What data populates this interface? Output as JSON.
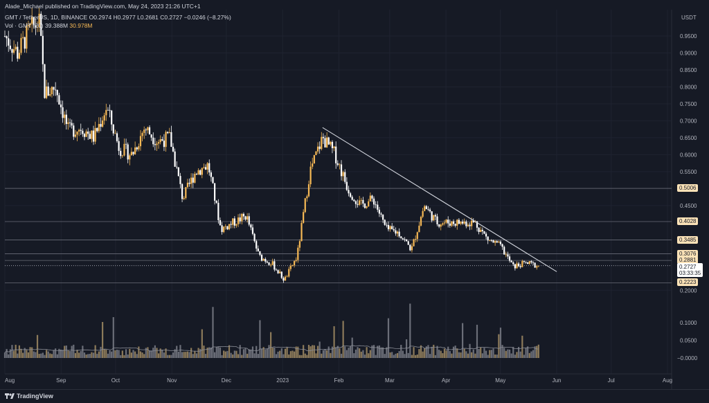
{
  "header": {
    "publisher": "Alade_Michael published on TradingView.com, May 24, 2023 21:26 UTC+1",
    "symbol": "GMT / TetherUS, 1D, BINANCE",
    "o_label": "O",
    "o_value": "0.2974",
    "h_label": "H",
    "h_value": "0.2977",
    "l_label": "L",
    "l_value": "0.2681",
    "c_label": "C",
    "c_value": "0.2727",
    "change": "−0.0246 (−8.27%)",
    "vol_label": "Vol · GMT (20)",
    "vol_value1": "39.388M",
    "vol_value2": "30.978M"
  },
  "axis": {
    "currency": "USDT",
    "price_ticks": [
      "0.9500",
      "0.9000",
      "0.8500",
      "0.8000",
      "0.7500",
      "0.7000",
      "0.6500",
      "0.6000",
      "0.5500",
      "0.4500",
      "0.2000"
    ],
    "volume_ticks": [
      "0.1000",
      "0.0500",
      "−0.0000"
    ],
    "months": [
      "Aug",
      "Sep",
      "Oct",
      "Nov",
      "Dec",
      "2023",
      "Feb",
      "Mar",
      "Apr",
      "May",
      "Jun",
      "Jul",
      "Aug"
    ]
  },
  "levels": [
    "0.5006",
    "0.4028",
    "0.3485",
    "0.3076",
    "0.2881",
    "0.2223"
  ],
  "current": {
    "price": "0.2727",
    "countdown": "03:33:35"
  },
  "footer": {
    "brand": "TradingView"
  },
  "chart_data": {
    "type": "candlestick",
    "price_axis_range": [
      0.16,
      1.0
    ],
    "horizontal_levels": [
      0.5006,
      0.4028,
      0.3485,
      0.3076,
      0.2881,
      0.2223
    ],
    "trendline": {
      "from": [
        "2023-01-23",
        0.68
      ],
      "to": [
        "2023-06-01",
        0.255
      ]
    },
    "close_series": [
      {
        "date": "2022-08-01",
        "close": 0.95
      },
      {
        "date": "2022-08-08",
        "close": 0.9
      },
      {
        "date": "2022-08-15",
        "close": 0.97
      },
      {
        "date": "2022-08-20",
        "close": 0.99
      },
      {
        "date": "2022-08-23",
        "close": 0.78
      },
      {
        "date": "2022-08-29",
        "close": 0.8
      },
      {
        "date": "2022-09-05",
        "close": 0.67
      },
      {
        "date": "2022-09-12",
        "close": 0.68
      },
      {
        "date": "2022-09-19",
        "close": 0.65
      },
      {
        "date": "2022-09-26",
        "close": 0.74
      },
      {
        "date": "2022-10-03",
        "close": 0.62
      },
      {
        "date": "2022-10-10",
        "close": 0.6
      },
      {
        "date": "2022-10-17",
        "close": 0.68
      },
      {
        "date": "2022-10-24",
        "close": 0.64
      },
      {
        "date": "2022-10-31",
        "close": 0.65
      },
      {
        "date": "2022-11-07",
        "close": 0.47
      },
      {
        "date": "2022-11-14",
        "close": 0.55
      },
      {
        "date": "2022-11-21",
        "close": 0.57
      },
      {
        "date": "2022-11-28",
        "close": 0.38
      },
      {
        "date": "2022-12-05",
        "close": 0.4
      },
      {
        "date": "2022-12-12",
        "close": 0.42
      },
      {
        "date": "2022-12-19",
        "close": 0.3
      },
      {
        "date": "2022-12-26",
        "close": 0.28
      },
      {
        "date": "2023-01-02",
        "close": 0.23
      },
      {
        "date": "2023-01-09",
        "close": 0.3
      },
      {
        "date": "2023-01-16",
        "close": 0.55
      },
      {
        "date": "2023-01-23",
        "close": 0.65
      },
      {
        "date": "2023-01-30",
        "close": 0.6
      },
      {
        "date": "2023-02-06",
        "close": 0.5
      },
      {
        "date": "2023-02-13",
        "close": 0.45
      },
      {
        "date": "2023-02-20",
        "close": 0.47
      },
      {
        "date": "2023-02-27",
        "close": 0.38
      },
      {
        "date": "2023-03-06",
        "close": 0.37
      },
      {
        "date": "2023-03-13",
        "close": 0.32
      },
      {
        "date": "2023-03-20",
        "close": 0.45
      },
      {
        "date": "2023-03-27",
        "close": 0.4
      },
      {
        "date": "2023-04-03",
        "close": 0.4
      },
      {
        "date": "2023-04-10",
        "close": 0.4
      },
      {
        "date": "2023-04-17",
        "close": 0.4
      },
      {
        "date": "2023-04-24",
        "close": 0.35
      },
      {
        "date": "2023-05-01",
        "close": 0.33
      },
      {
        "date": "2023-05-08",
        "close": 0.27
      },
      {
        "date": "2023-05-15",
        "close": 0.28
      },
      {
        "date": "2023-05-22",
        "close": 0.2727
      }
    ]
  }
}
